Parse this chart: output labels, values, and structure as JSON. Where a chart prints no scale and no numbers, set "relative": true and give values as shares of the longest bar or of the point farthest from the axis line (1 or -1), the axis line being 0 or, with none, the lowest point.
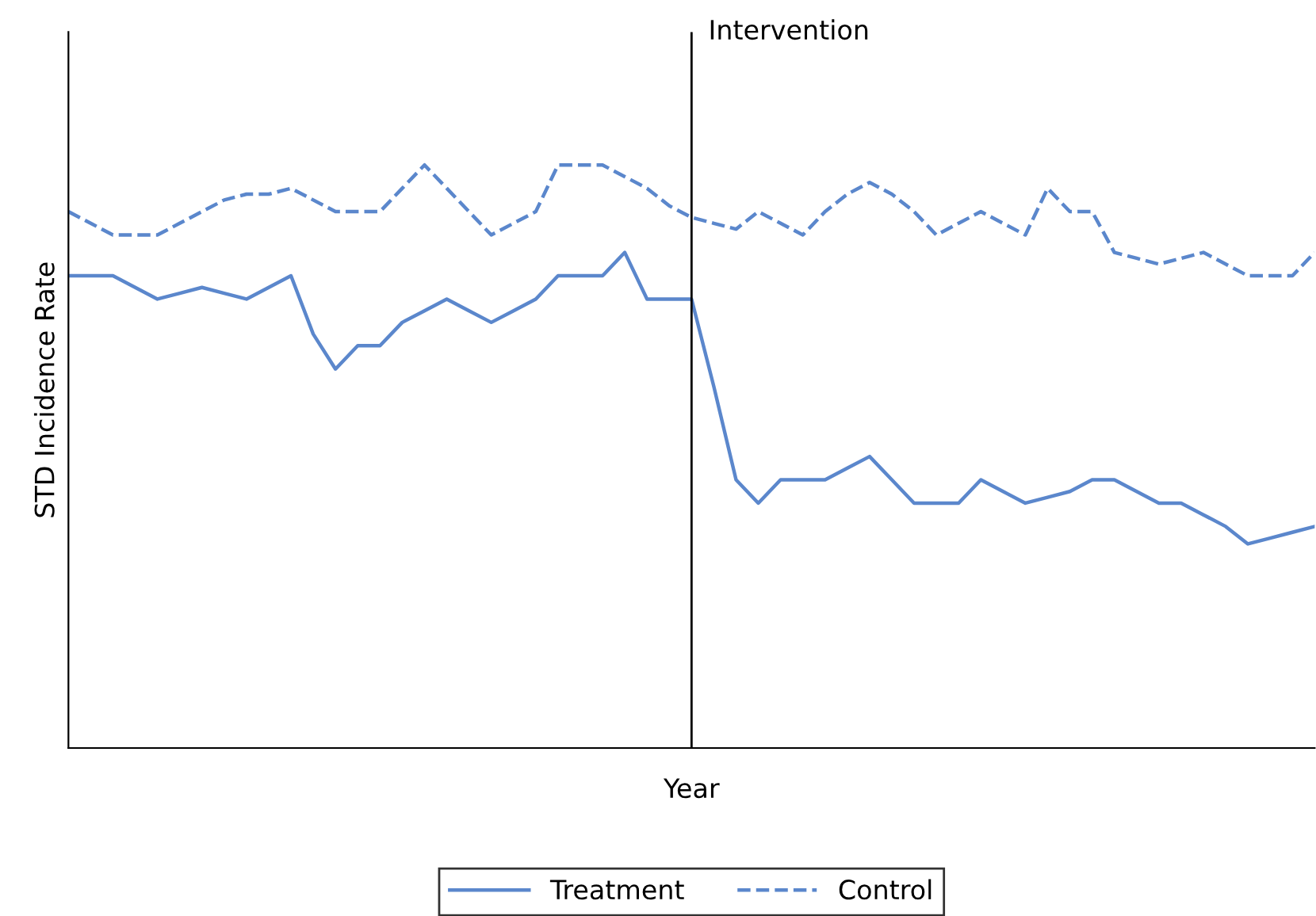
{
  "chart_data": {
    "type": "line",
    "relative": true,
    "xlabel": "Year",
    "ylabel": "STD Incidence Rate",
    "legend": "bottom",
    "categories": [
      null,
      null,
      null,
      null,
      null,
      null,
      null,
      null,
      null,
      null,
      null,
      null,
      null,
      null,
      null,
      null,
      null,
      null,
      null,
      null,
      null,
      null,
      null,
      null,
      null,
      null,
      null,
      null,
      null,
      null,
      null,
      null,
      null,
      null,
      null,
      null,
      null,
      null,
      null,
      null,
      null,
      null,
      null,
      null,
      null,
      null,
      null,
      null,
      null,
      null,
      null,
      null,
      null,
      null,
      null,
      null,
      null
    ],
    "annotations": [
      "Intervention"
    ],
    "series": [
      {
        "name": "Treatment",
        "color": "#5b87cc",
        "line_style": "solid",
        "values": [
          0.81,
          0.81,
          0.81,
          0.79,
          0.77,
          0.78,
          0.79,
          0.78,
          0.77,
          0.79,
          0.81,
          0.71,
          0.65,
          0.69,
          0.69,
          0.73,
          0.75,
          0.77,
          0.75,
          0.73,
          0.75,
          0.77,
          0.81,
          0.81,
          0.81,
          0.85,
          0.77,
          0.77,
          0.77,
          0.62,
          0.46,
          0.42,
          0.46,
          0.46,
          0.46,
          0.48,
          0.5,
          0.46,
          0.42,
          0.42,
          0.42,
          0.46,
          0.44,
          0.42,
          0.43,
          0.44,
          0.46,
          0.46,
          0.44,
          0.42,
          0.42,
          0.4,
          0.38,
          0.35,
          0.36,
          0.37,
          0.38
        ]
      },
      {
        "name": "Control",
        "color": "#5b87cc",
        "line_style": "dashed",
        "values": [
          0.92,
          0.9,
          0.88,
          0.88,
          0.88,
          0.9,
          0.92,
          0.94,
          0.95,
          0.95,
          0.96,
          0.94,
          0.92,
          0.92,
          0.92,
          0.96,
          1,
          0.96,
          0.92,
          0.88,
          0.9,
          0.92,
          1,
          1,
          1,
          0.98,
          0.96,
          0.93,
          0.91,
          0.9,
          0.89,
          0.92,
          0.9,
          0.88,
          0.92,
          0.95,
          0.97,
          0.95,
          0.92,
          0.88,
          0.9,
          0.92,
          0.9,
          0.88,
          0.96,
          0.92,
          0.92,
          0.85,
          0.84,
          0.83,
          0.84,
          0.85,
          0.83,
          0.81,
          0.81,
          0.81,
          0.85
        ]
      }
    ]
  }
}
